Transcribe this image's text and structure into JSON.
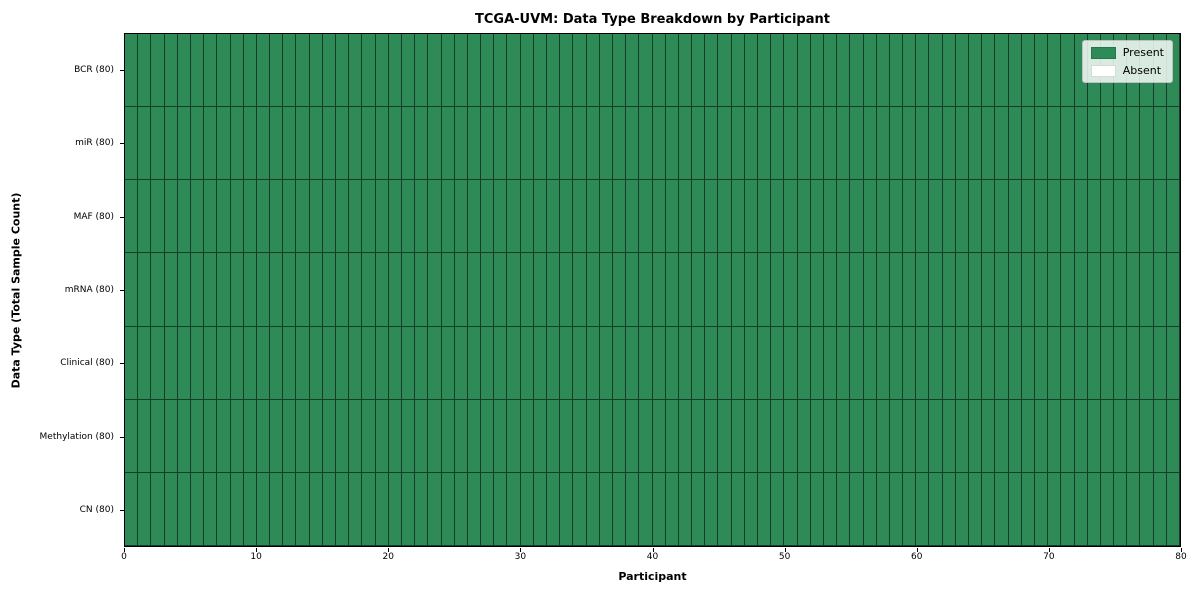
{
  "chart_data": {
    "type": "heatmap",
    "title": "TCGA-UVM: Data Type Breakdown by Participant",
    "xlabel": "Participant",
    "ylabel": "Data Type (Total Sample Count)",
    "participants": 80,
    "x_ticks": [
      0,
      10,
      20,
      30,
      40,
      50,
      60,
      70,
      80
    ],
    "xlim": [
      0,
      80
    ],
    "rows": [
      {
        "label": "BCR (80)",
        "present_count": 80
      },
      {
        "label": "miR (80)",
        "present_count": 80
      },
      {
        "label": "MAF (80)",
        "present_count": 80
      },
      {
        "label": "mRNA (80)",
        "present_count": 80
      },
      {
        "label": "Clinical (80)",
        "present_count": 80
      },
      {
        "label": "Methylation (80)",
        "present_count": 80
      },
      {
        "label": "CN (80)",
        "present_count": 80
      }
    ],
    "legend": [
      {
        "label": "Present",
        "color": "#2e8b57"
      },
      {
        "label": "Absent",
        "color": "#ffffff"
      }
    ],
    "colors": {
      "present": "#2e8b57",
      "absent": "#ffffff",
      "cell_border": "rgba(0,0,0,0.55)"
    },
    "legend_position": "upper right",
    "grid": "cell-borders"
  }
}
